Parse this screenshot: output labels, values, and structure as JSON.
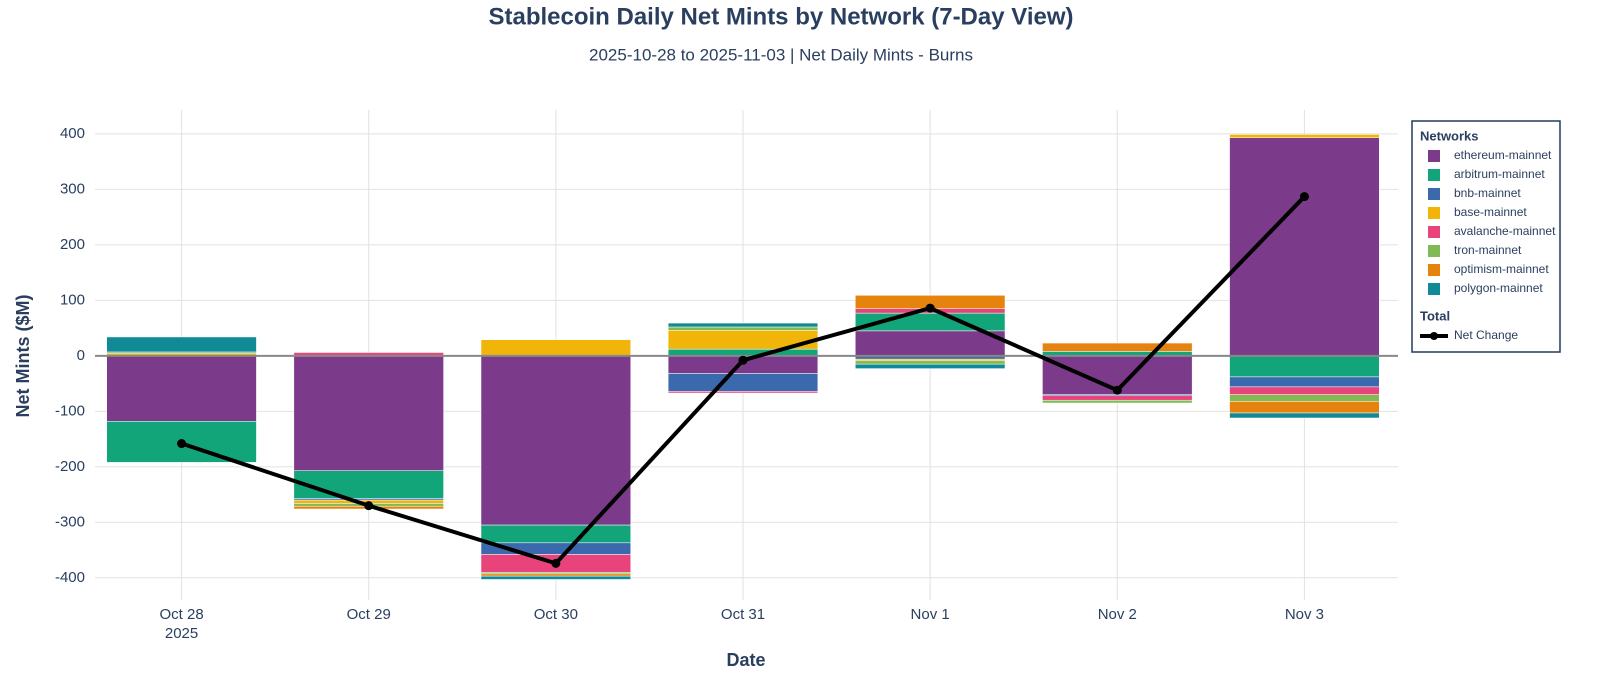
{
  "chart_data": {
    "type": "bar",
    "barmode": "relative",
    "title": "Stablecoin Daily Net Mints by Network (7-Day View)",
    "subtitle": "2025-10-28 to 2025-11-03 | Net Daily Mints - Burns",
    "x_label": "Date",
    "y_label": "Net Mints ($M)",
    "categories": [
      "Oct 28",
      "Oct 29",
      "Oct 30",
      "Oct 31",
      "Nov 1",
      "Nov 2",
      "Nov 3"
    ],
    "x_sublabel": "2025",
    "ylim": [
      -440,
      443
    ],
    "yticks": [
      -400,
      -300,
      -200,
      -100,
      0,
      100,
      200,
      300,
      400
    ],
    "grid": true,
    "legend_title": "Networks",
    "legend_position": "right",
    "series": [
      {
        "name": "ethereum-mainnet",
        "color": "#7b3a8a",
        "values": [
          -118,
          -207,
          -305,
          -32,
          45,
          -70,
          393
        ]
      },
      {
        "name": "arbitrum-mainnet",
        "color": "#13a57a",
        "values": [
          -74,
          -50,
          -32,
          12,
          32,
          8,
          -38
        ]
      },
      {
        "name": "bnb-mainnet",
        "color": "#3a6aad",
        "values": [
          0,
          -3,
          -21,
          -32,
          -6,
          -2,
          -18
        ]
      },
      {
        "name": "base-mainnet",
        "color": "#f1b50a",
        "values": [
          4,
          -6,
          29,
          34,
          -3,
          0,
          6
        ]
      },
      {
        "name": "avalanche-mainnet",
        "color": "#e8437a",
        "values": [
          0,
          6,
          -32,
          -3,
          8,
          -8,
          -14
        ]
      },
      {
        "name": "tron-mainnet",
        "color": "#7fba55",
        "values": [
          3,
          -5,
          -3,
          6,
          -6,
          -5,
          -12
        ]
      },
      {
        "name": "optimism-mainnet",
        "color": "#e6830f",
        "values": [
          0,
          -5,
          -4,
          0,
          24,
          15,
          -21
        ]
      },
      {
        "name": "polygon-mainnet",
        "color": "#0f8a96",
        "values": [
          27,
          0,
          -6,
          7,
          -8,
          0,
          -9
        ]
      }
    ],
    "total": {
      "legend_title": "Total",
      "name": "Net Change",
      "color": "#000000",
      "values": [
        -158,
        -270,
        -374,
        -8,
        86,
        -62,
        287
      ]
    }
  }
}
